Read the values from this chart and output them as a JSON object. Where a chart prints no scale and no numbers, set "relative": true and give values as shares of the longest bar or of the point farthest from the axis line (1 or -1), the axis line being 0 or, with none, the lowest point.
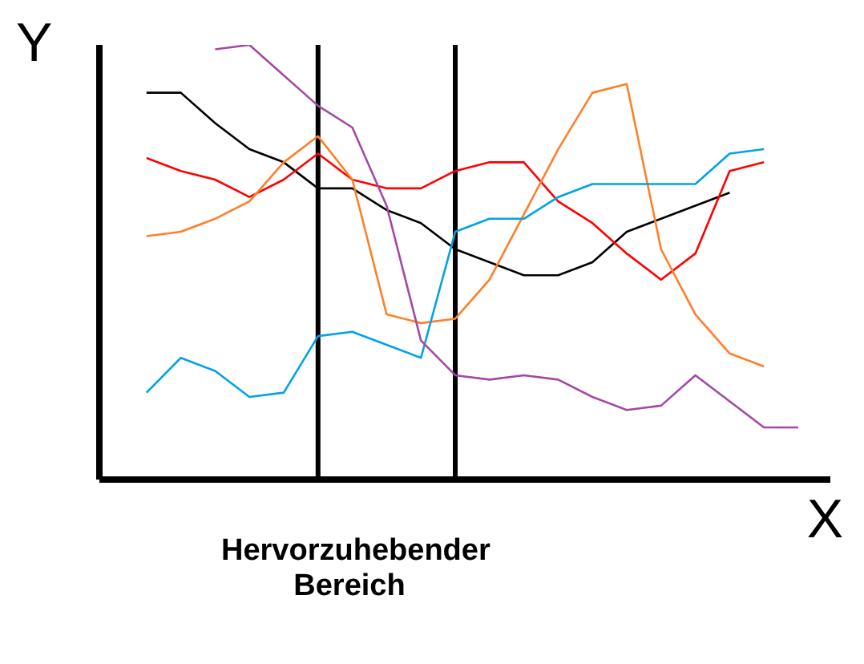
{
  "chart_data": {
    "type": "line",
    "relative": true,
    "xlabel": "X",
    "ylabel": "Y",
    "categories": [
      null,
      null,
      null,
      null,
      null,
      null,
      null,
      null,
      null,
      null,
      null,
      null,
      null,
      null,
      null,
      null,
      null,
      null,
      null,
      null,
      null
    ],
    "marker": "none",
    "line_style": "solid",
    "series": [
      {
        "color": "#000000",
        "values": [
          null,
          0.89,
          0.89,
          0.82,
          0.76,
          0.73,
          0.67,
          0.67,
          0.62,
          0.59,
          0.53,
          0.5,
          0.47,
          0.47,
          0.5,
          0.57,
          0.6,
          0.63,
          0.66,
          null,
          null
        ]
      },
      {
        "color": "#ff0000",
        "values": [
          null,
          0.74,
          0.71,
          0.69,
          0.65,
          0.69,
          0.75,
          0.69,
          0.67,
          0.67,
          0.71,
          0.73,
          0.73,
          0.64,
          0.59,
          0.52,
          0.46,
          0.52,
          0.71,
          0.73,
          null
        ]
      },
      {
        "color": "#ff7f27",
        "values": [
          null,
          0.56,
          0.57,
          0.6,
          0.64,
          0.73,
          0.79,
          0.69,
          0.38,
          0.36,
          0.37,
          0.46,
          0.61,
          0.76,
          0.89,
          0.91,
          0.53,
          0.38,
          0.29,
          0.26,
          null
        ]
      },
      {
        "color": "#00a2e8",
        "values": [
          null,
          0.2,
          0.28,
          0.25,
          0.19,
          0.2,
          0.33,
          0.34,
          0.31,
          0.28,
          0.57,
          0.6,
          0.6,
          0.65,
          0.68,
          0.68,
          0.68,
          0.68,
          0.75,
          0.76,
          null
        ]
      },
      {
        "color": "#a349a4",
        "values": [
          null,
          null,
          null,
          0.99,
          1,
          0.93,
          0.86,
          0.81,
          0.63,
          0.32,
          0.24,
          0.23,
          0.24,
          0.23,
          0.19,
          0.16,
          0.17,
          0.24,
          0.18,
          0.12,
          0.12
        ]
      }
    ],
    "annotations": [
      "Hervorzuhebender Bereich"
    ]
  }
}
